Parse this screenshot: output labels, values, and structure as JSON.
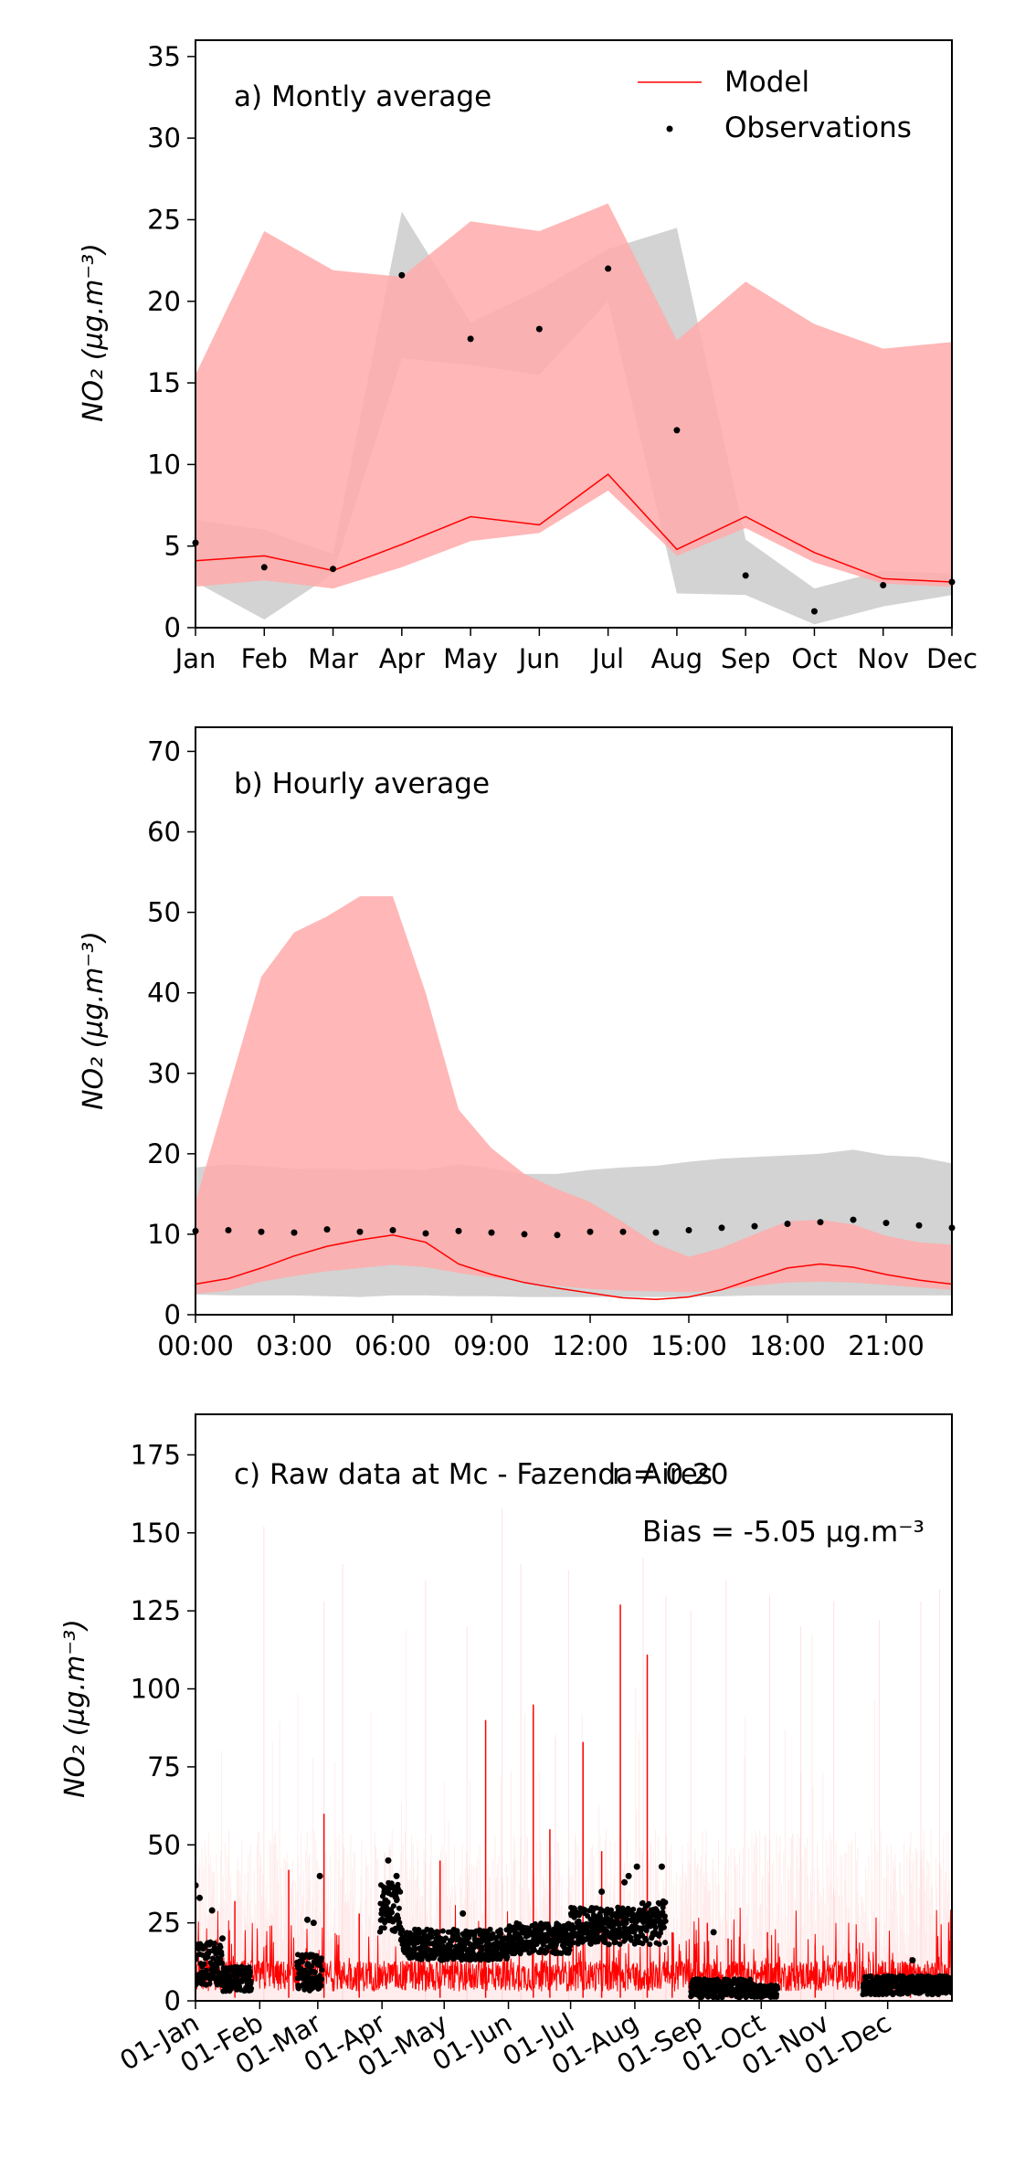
{
  "colors": {
    "model": "#ff0000",
    "model_band": "#ffaaaa",
    "obs_band": "#d3d3d3",
    "obs": "#000000"
  },
  "chart_data": [
    {
      "type": "line",
      "title": "a) Montly average",
      "ylabel": "NO₂ (µg.m⁻³)",
      "ylim": [
        0,
        36
      ],
      "yticks": [
        0,
        5,
        10,
        15,
        20,
        25,
        30,
        35
      ],
      "categories": [
        "Jan",
        "Feb",
        "Mar",
        "Apr",
        "May",
        "Jun",
        "Jul",
        "Aug",
        "Sep",
        "Oct",
        "Nov",
        "Dec"
      ],
      "legend": {
        "placement": "top-right",
        "entries": [
          "Model",
          "Observations"
        ]
      },
      "series": [
        {
          "name": "Model",
          "kind": "line",
          "values": [
            4.1,
            4.4,
            3.5,
            5.1,
            6.8,
            6.3,
            9.4,
            4.8,
            6.8,
            4.6,
            3.0,
            2.8
          ]
        },
        {
          "name": "Model range",
          "kind": "band",
          "lower": [
            2.5,
            2.9,
            2.4,
            3.7,
            5.3,
            5.8,
            8.4,
            4.4,
            6.1,
            4.0,
            2.7,
            2.5
          ],
          "upper": [
            15.5,
            24.3,
            21.9,
            21.5,
            24.9,
            24.3,
            26.0,
            17.6,
            21.2,
            18.6,
            17.1,
            17.5
          ]
        },
        {
          "name": "Observations",
          "kind": "scatter",
          "values": [
            5.2,
            3.7,
            3.6,
            21.6,
            17.7,
            18.3,
            22.0,
            12.1,
            3.2,
            1.0,
            2.6,
            2.8
          ]
        },
        {
          "name": "Observation range",
          "kind": "band",
          "lower": [
            2.8,
            0.5,
            3.3,
            16.5,
            16.1,
            15.5,
            20.0,
            2.1,
            2.0,
            0.2,
            1.3,
            2.0
          ],
          "upper": [
            6.6,
            6.0,
            4.5,
            25.5,
            18.7,
            20.7,
            23.2,
            24.5,
            5.4,
            2.4,
            3.5,
            3.3
          ]
        }
      ]
    },
    {
      "type": "line",
      "title": "b) Hourly average",
      "ylabel": "NO₂ (µg.m⁻³)",
      "ylim": [
        0,
        73
      ],
      "yticks": [
        0,
        10,
        20,
        30,
        40,
        50,
        60,
        70
      ],
      "x": [
        0,
        1,
        2,
        3,
        4,
        5,
        6,
        7,
        8,
        9,
        10,
        11,
        12,
        13,
        14,
        15,
        16,
        17,
        18,
        19,
        20,
        21,
        22,
        23
      ],
      "xticks": [
        "00:00",
        "03:00",
        "06:00",
        "09:00",
        "12:00",
        "15:00",
        "18:00",
        "21:00"
      ],
      "series": [
        {
          "name": "Model",
          "kind": "line",
          "values": [
            3.8,
            4.5,
            5.8,
            7.3,
            8.5,
            9.3,
            9.9,
            9.0,
            6.3,
            5.0,
            4.0,
            3.3,
            2.7,
            2.1,
            1.9,
            2.2,
            3.1,
            4.5,
            5.8,
            6.3,
            5.9,
            5.0,
            4.3,
            3.8
          ]
        },
        {
          "name": "Model range",
          "kind": "band",
          "lower": [
            2.6,
            3.0,
            4.1,
            4.8,
            5.4,
            5.8,
            6.2,
            5.9,
            5.2,
            4.6,
            4.1,
            3.6,
            3.2,
            3.0,
            2.9,
            2.8,
            3.1,
            3.6,
            4.0,
            4.1,
            4.0,
            3.7,
            3.4,
            3.1
          ]
        },
        {
          "name": "Observations",
          "kind": "scatter",
          "values": [
            10.4,
            10.5,
            10.3,
            10.2,
            10.6,
            10.3,
            10.5,
            10.1,
            10.4,
            10.2,
            10.0,
            9.9,
            10.3,
            10.3,
            10.2,
            10.5,
            10.8,
            11.0,
            11.3,
            11.5,
            11.8,
            11.4,
            11.1,
            10.8
          ]
        },
        {
          "name": "Observation range",
          "kind": "band",
          "lower": [
            2.5,
            2.4,
            2.4,
            2.4,
            2.3,
            2.2,
            2.4,
            2.4,
            2.3,
            2.3,
            2.2,
            2.2,
            2.2,
            2.2,
            2.2,
            2.2,
            2.3,
            2.4,
            2.4,
            2.4,
            2.4,
            2.4,
            2.4,
            2.4
          ],
          "upper": [
            18.3,
            18.7,
            18.5,
            18.1,
            18.2,
            18.0,
            18.1,
            18.0,
            18.7,
            18.2,
            17.5,
            17.5,
            18.0,
            18.3,
            18.5,
            19.0,
            19.4,
            19.6,
            19.8,
            20.0,
            20.5,
            19.8,
            19.6,
            18.8
          ]
        }
      ],
      "model_band_upper": [
        14.0,
        28.0,
        42.0,
        47.5,
        49.5,
        52.0,
        52.0,
        40.0,
        25.5,
        20.7,
        17.5,
        15.6,
        14.0,
        11.5,
        8.8,
        7.2,
        8.3,
        10.0,
        11.6,
        11.8,
        11.2,
        9.8,
        9.0,
        8.7
      ]
    },
    {
      "type": "line",
      "title": "c) Raw data at Mc - Fazenda Aires",
      "annotations": [
        "r = 0.20",
        "Bias = -5.05 µg.m⁻³"
      ],
      "ylabel": "NO₂ (µg.m⁻³)",
      "ylim": [
        0,
        188
      ],
      "yticks": [
        0,
        25,
        50,
        75,
        100,
        125,
        150,
        175
      ],
      "xticks": [
        "01-Jan",
        "01-Feb",
        "01-Mar",
        "01-Apr",
        "01-May",
        "01-Jun",
        "01-Jul",
        "01-Aug",
        "01-Sep",
        "01-Oct",
        "01-Nov",
        "01-Dec"
      ],
      "xtick_day_of_year": [
        1,
        32,
        60,
        91,
        121,
        152,
        182,
        213,
        244,
        274,
        305,
        335
      ],
      "x_range_day_of_year": [
        1,
        366
      ],
      "model_spikes": [
        {
          "day": 20,
          "value": 32
        },
        {
          "day": 46,
          "value": 42
        },
        {
          "day": 63,
          "value": 60
        },
        {
          "day": 80,
          "value": 28
        },
        {
          "day": 119,
          "value": 45
        },
        {
          "day": 141,
          "value": 90
        },
        {
          "day": 164,
          "value": 95
        },
        {
          "day": 172,
          "value": 55
        },
        {
          "day": 188,
          "value": 83
        },
        {
          "day": 197,
          "value": 48
        },
        {
          "day": 206,
          "value": 127
        },
        {
          "day": 219,
          "value": 111
        },
        {
          "day": 231,
          "value": 22
        },
        {
          "day": 248,
          "value": 25
        },
        {
          "day": 258,
          "value": 20
        },
        {
          "day": 277,
          "value": 22
        },
        {
          "day": 300,
          "value": 18
        },
        {
          "day": 346,
          "value": 14
        }
      ],
      "model_ensemble_peaks": [
        {
          "day": 34,
          "value": 152
        },
        {
          "day": 63,
          "value": 128
        },
        {
          "day": 72,
          "value": 140
        },
        {
          "day": 112,
          "value": 135
        },
        {
          "day": 132,
          "value": 120
        },
        {
          "day": 149,
          "value": 158
        },
        {
          "day": 158,
          "value": 140
        },
        {
          "day": 181,
          "value": 138
        },
        {
          "day": 217,
          "value": 142
        },
        {
          "day": 228,
          "value": 130
        },
        {
          "day": 240,
          "value": 125
        },
        {
          "day": 257,
          "value": 135
        },
        {
          "day": 278,
          "value": 130
        },
        {
          "day": 293,
          "value": 120
        },
        {
          "day": 309,
          "value": 128
        },
        {
          "day": 331,
          "value": 122
        },
        {
          "day": 351,
          "value": 128
        },
        {
          "day": 360,
          "value": 132
        }
      ],
      "observation_segments": [
        {
          "start": 1,
          "end": 14,
          "median": 12,
          "spread": 7
        },
        {
          "start": 14,
          "end": 28,
          "median": 7,
          "spread": 4
        },
        {
          "start": 50,
          "end": 62,
          "median": 9,
          "spread": 6
        },
        {
          "start": 90,
          "end": 100,
          "median": 30,
          "spread": 8
        },
        {
          "start": 100,
          "end": 152,
          "median": 18,
          "spread": 5
        },
        {
          "start": 152,
          "end": 182,
          "median": 20,
          "spread": 5
        },
        {
          "start": 182,
          "end": 216,
          "median": 24,
          "spread": 6
        },
        {
          "start": 216,
          "end": 228,
          "median": 25,
          "spread": 7
        },
        {
          "start": 240,
          "end": 270,
          "median": 4,
          "spread": 3
        },
        {
          "start": 270,
          "end": 282,
          "median": 3,
          "spread": 2
        },
        {
          "start": 323,
          "end": 366,
          "median": 5,
          "spread": 3
        }
      ],
      "observation_outliers": [
        {
          "day": 1,
          "value": 37
        },
        {
          "day": 3,
          "value": 33
        },
        {
          "day": 9,
          "value": 29
        },
        {
          "day": 14,
          "value": 20
        },
        {
          "day": 55,
          "value": 26
        },
        {
          "day": 58,
          "value": 25
        },
        {
          "day": 61,
          "value": 40
        },
        {
          "day": 94,
          "value": 45
        },
        {
          "day": 98,
          "value": 40
        },
        {
          "day": 130,
          "value": 28
        },
        {
          "day": 197,
          "value": 35
        },
        {
          "day": 208,
          "value": 38
        },
        {
          "day": 210,
          "value": 40
        },
        {
          "day": 214,
          "value": 43
        },
        {
          "day": 226,
          "value": 43
        },
        {
          "day": 251,
          "value": 22
        },
        {
          "day": 347,
          "value": 13
        }
      ]
    }
  ]
}
